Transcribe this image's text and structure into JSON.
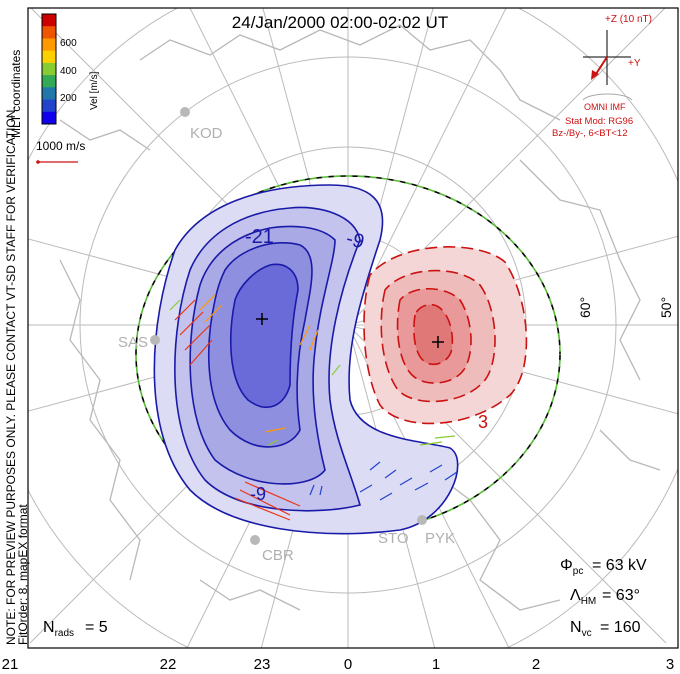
{
  "title": "24/Jan/2000 02:00-02:02 UT",
  "colorbar": {
    "ticks": [
      "600",
      "400",
      "200"
    ],
    "unit_label": "Vel [m/s]",
    "colors": [
      "#cc0000",
      "#ee5500",
      "#ff9900",
      "#ffd000",
      "#88cc33",
      "#33aa55",
      "#2277aa",
      "#2244cc",
      "#1100ee"
    ]
  },
  "coords_label": "MLT coordinates",
  "scale_vector_label": "1000 m/s",
  "side_note": "NOTE: FOR PREVIEW PURPOSES ONLY. PLEASE CONTACT VT-SD STAFF FOR VERIFICATION.",
  "fit_order": "FitOrder: 8, mapEX format",
  "imf": {
    "z_label": "+Z (10 nT)",
    "y_label": "+Y",
    "source": "OMNI IMF",
    "stat_mod": "Stat Mod: RG96",
    "condition": "Bz-/By-, 6<BT<12"
  },
  "stations": [
    "KOD",
    "SAS",
    "CBR",
    "STO",
    "PYK"
  ],
  "lat_labels": [
    "60°",
    "50°"
  ],
  "contour_labels": [
    "-21",
    "-9",
    "-9",
    "3"
  ],
  "stats": {
    "phi_pc": "= 63 kV",
    "lambda_hm": "= 63°",
    "n_vc": "= 160",
    "n_rads": "= 5"
  },
  "mlt_axis": [
    "21",
    "22",
    "23",
    "0",
    "1",
    "2",
    "3"
  ],
  "accent": {
    "neg": "#1a1aa8",
    "pos": "#cc1111",
    "boundary": "#55bb33"
  }
}
